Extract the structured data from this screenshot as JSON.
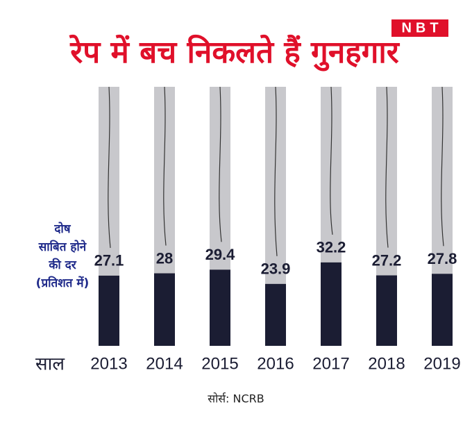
{
  "chart_data": {
    "type": "bar",
    "title": "रेप में बच निकलते हैं गुनहगार",
    "logo": "NBT",
    "ylabel": [
      "दोष",
      "साबित होने",
      "की दर",
      "(प्रतिशत में)"
    ],
    "xlabel": "साल",
    "source": "सोर्स: NCRB",
    "categories": [
      "2013",
      "2014",
      "2015",
      "2016",
      "2017",
      "2018",
      "2019"
    ],
    "values": [
      27.1,
      28,
      29.4,
      23.9,
      32.2,
      27.2,
      27.8
    ],
    "color": "#1b1d33",
    "track_color": "#c8c8cc",
    "ylim": [
      0,
      100
    ]
  }
}
